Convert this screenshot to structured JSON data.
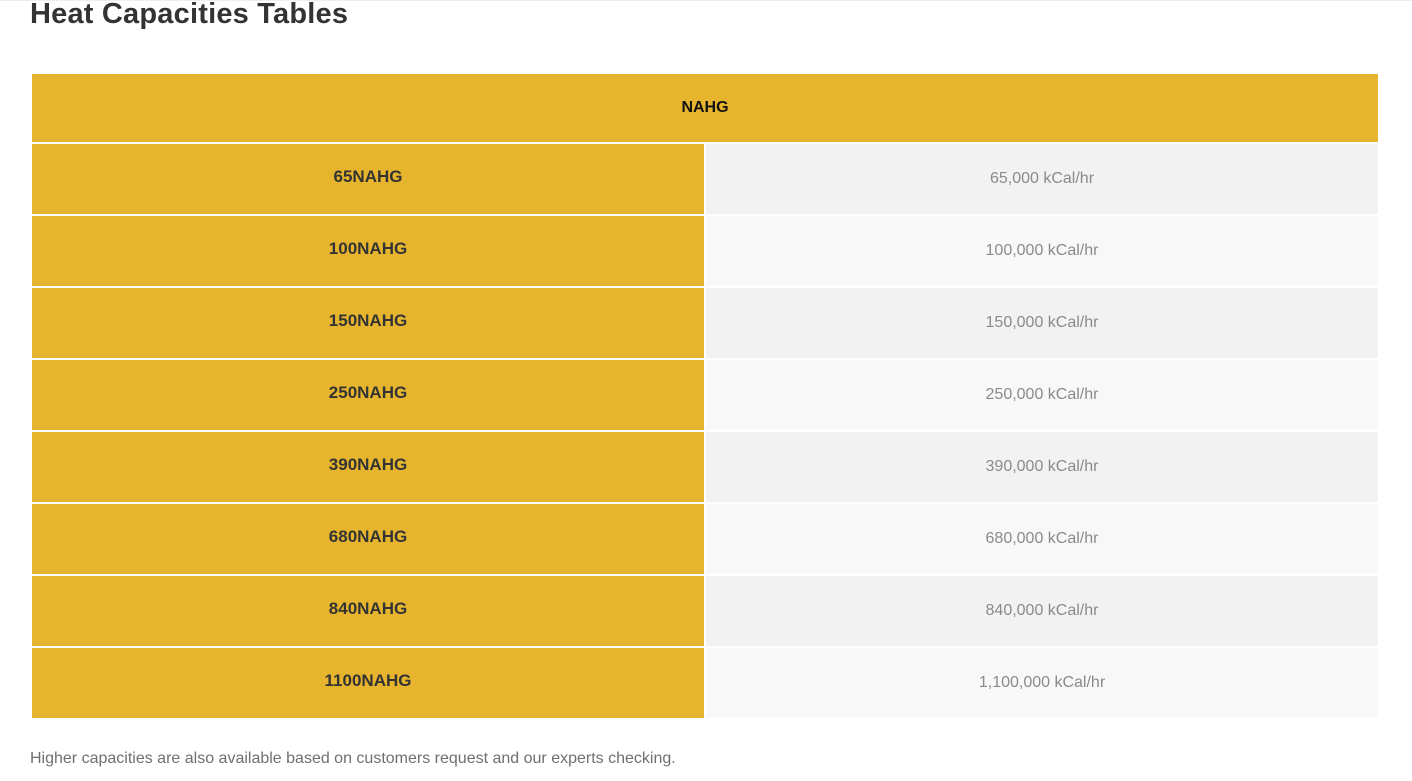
{
  "page": {
    "title": "Heat Capacities Tables",
    "footnote": "Higher capacities are also available based on customers request and our experts checking."
  },
  "table": {
    "header": "NAHG",
    "rows": [
      {
        "model": "65NAHG",
        "capacity": "65,000 kCal/hr"
      },
      {
        "model": "100NAHG",
        "capacity": "100,000 kCal/hr"
      },
      {
        "model": "150NAHG",
        "capacity": "150,000 kCal/hr"
      },
      {
        "model": "250NAHG",
        "capacity": "250,000 kCal/hr"
      },
      {
        "model": "390NAHG",
        "capacity": "390,000 kCal/hr"
      },
      {
        "model": "680NAHG",
        "capacity": "680,000 kCal/hr"
      },
      {
        "model": "840NAHG",
        "capacity": "840,000 kCal/hr"
      },
      {
        "model": "1100NAHG",
        "capacity": "1,100,000 kCal/hr"
      }
    ]
  },
  "colors": {
    "accent": "#e7b52d",
    "row_odd": "#f2f2f2",
    "row_even": "#f8f8f8",
    "title_text": "#333333"
  }
}
